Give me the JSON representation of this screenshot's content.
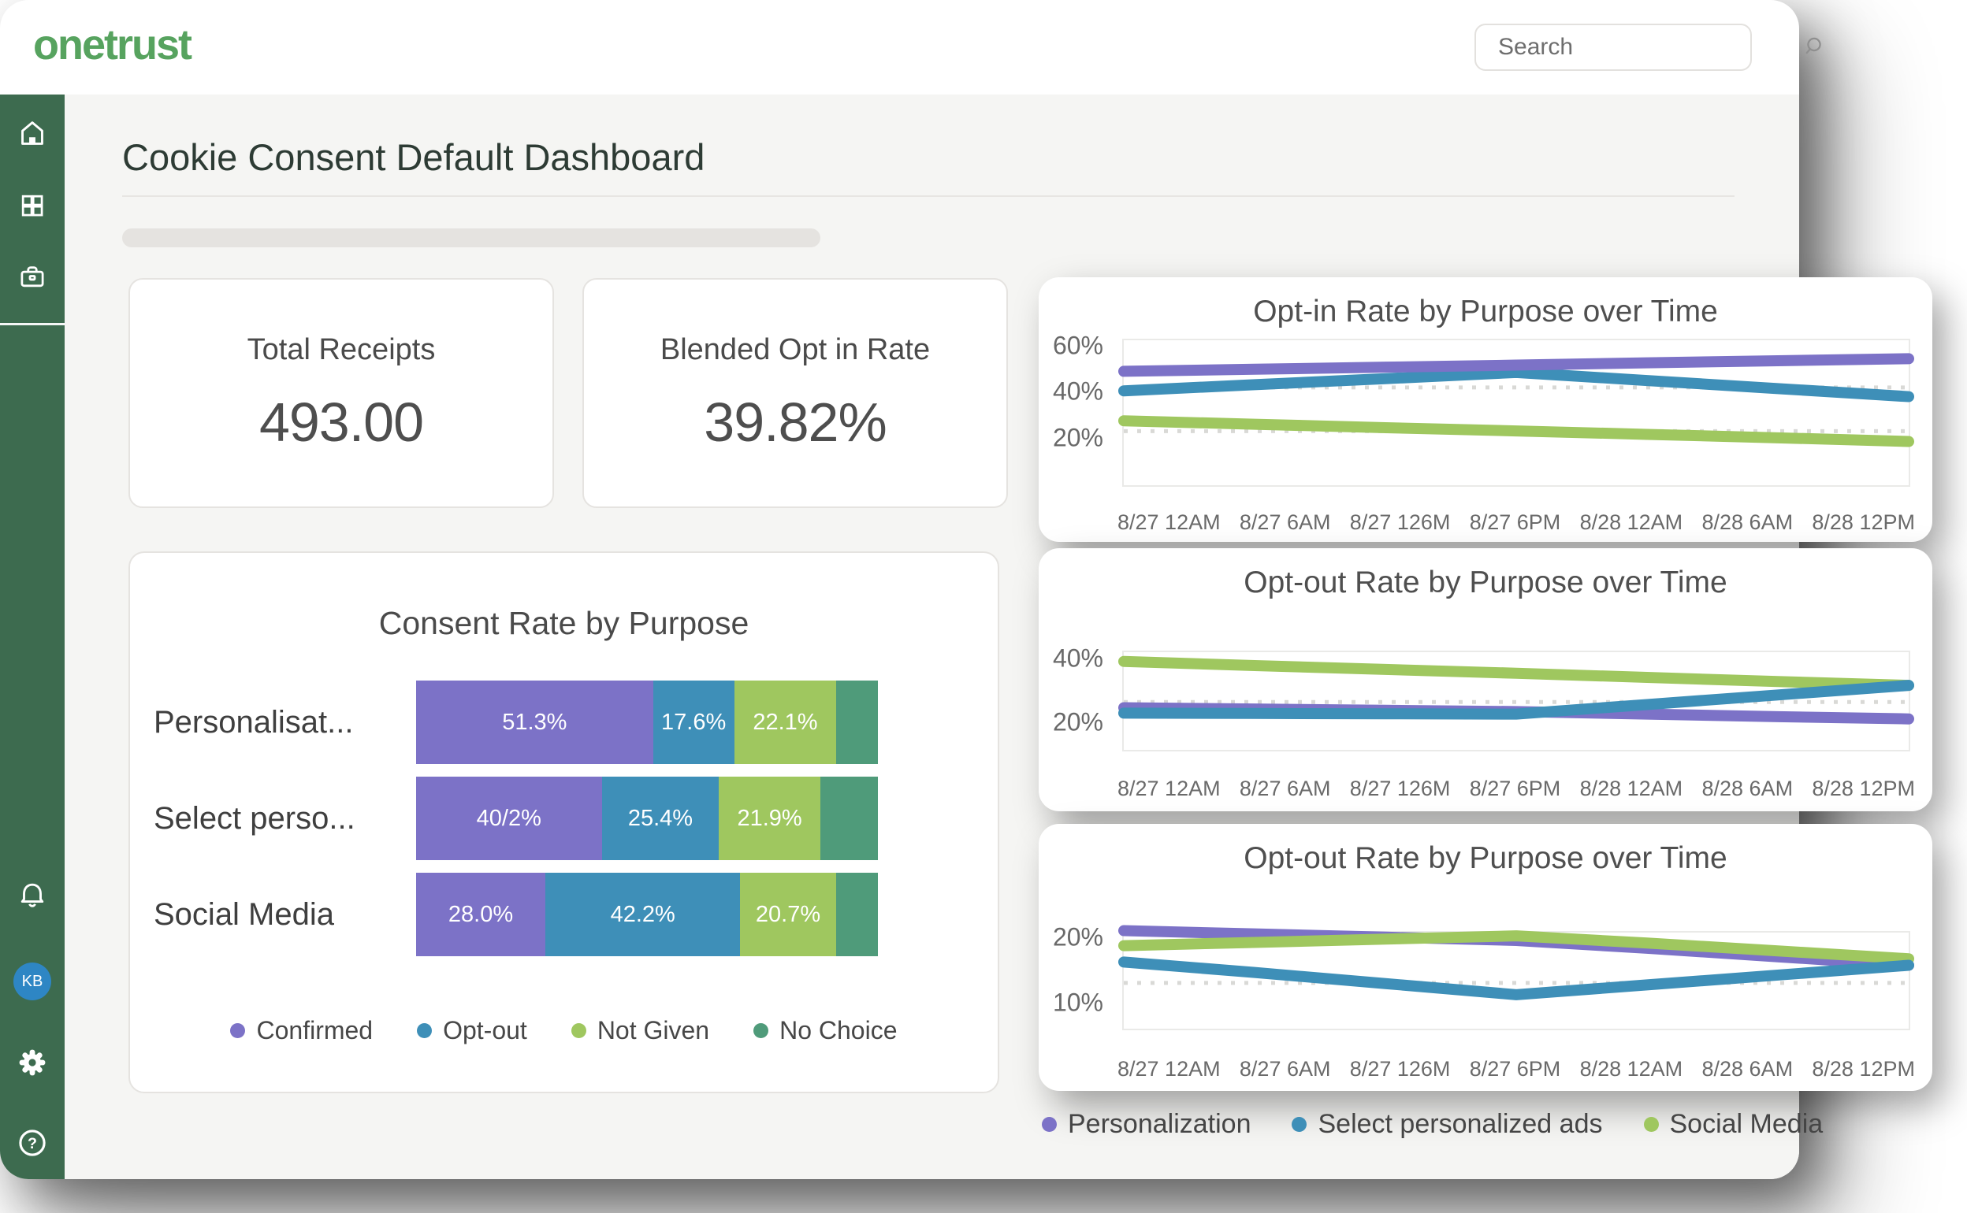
{
  "header": {
    "logo_text": "onetrust",
    "search_placeholder": "Search"
  },
  "sidebar": {
    "avatar_text": "KB"
  },
  "page": {
    "title": "Cookie Consent Default Dashboard"
  },
  "metrics": [
    {
      "label": "Total Receipts",
      "value": "493.00"
    },
    {
      "label": "Blended Opt in Rate",
      "value": "39.82%"
    }
  ],
  "colors": {
    "purple": "#7C72C7",
    "blue": "#3E8FB8",
    "green": "#9FC75F",
    "teal": "#4F9B7A",
    "sidebar_green": "#3D6B4F",
    "logo_green": "#57A35F",
    "avatar_blue": "#2E86C4",
    "ref_line": "#d9d9d6"
  },
  "chart_data": [
    {
      "id": "consent-rate-by-purpose",
      "type": "bar",
      "stacked": true,
      "orientation": "horizontal",
      "title": "Consent Rate by Purpose",
      "categories": [
        "Personalisat...",
        "Select perso...",
        "Social Media"
      ],
      "series": [
        {
          "name": "Confirmed",
          "color_key": "purple",
          "values": [
            51.3,
            40.2,
            28.0
          ],
          "labels": [
            "51.3%",
            "40/2%",
            "28.0%"
          ]
        },
        {
          "name": "Opt-out",
          "color_key": "blue",
          "values": [
            17.6,
            25.4,
            42.2
          ],
          "labels": [
            "17.6%",
            "25.4%",
            "42.2%"
          ]
        },
        {
          "name": "Not Given",
          "color_key": "green",
          "values": [
            22.1,
            21.9,
            20.7
          ],
          "labels": [
            "22.1%",
            "21.9%",
            "20.7%"
          ]
        },
        {
          "name": "No Choice",
          "color_key": "teal",
          "values": [
            9.0,
            12.5,
            9.1
          ],
          "labels": [
            "",
            "",
            ""
          ]
        }
      ],
      "legend": [
        {
          "label": "Confirmed",
          "color_key": "purple"
        },
        {
          "label": "Opt-out",
          "color_key": "blue"
        },
        {
          "label": "Not Given",
          "color_key": "green"
        },
        {
          "label": "No Choice",
          "color_key": "teal"
        }
      ]
    },
    {
      "id": "opt-in-rate-over-time",
      "type": "line",
      "title": "Opt-in Rate by Purpose over Time",
      "x_labels": [
        "8/27 12AM",
        "8/27 6AM",
        "8/27 126M",
        "8/27 6PM",
        "8/28 12AM",
        "8/28 6AM",
        "8/28 12PM"
      ],
      "ylim": [
        0,
        63
      ],
      "yticks": [
        {
          "value": 60,
          "label": "60%"
        },
        {
          "value": 40,
          "label": "40%"
        },
        {
          "value": 20,
          "label": "20%"
        }
      ],
      "ref_lines": [
        42.5,
        23.5
      ],
      "draw_order": [
        2,
        1,
        0
      ],
      "series": [
        {
          "name": "Personalization",
          "color_key": "purple",
          "values": [
            49.5,
            50.4,
            51.3,
            52.2,
            53.2,
            54.1,
            55.0
          ]
        },
        {
          "name": "Select personalized ads",
          "color_key": "blue",
          "values": [
            41.0,
            43.7,
            46.3,
            49.0,
            45.5,
            42.0,
            38.5
          ]
        },
        {
          "name": "Social Media",
          "color_key": "green",
          "values": [
            28.0,
            26.5,
            25.0,
            23.6,
            22.1,
            20.6,
            19.0
          ]
        }
      ]
    },
    {
      "id": "opt-out-rate-over-time-1",
      "type": "line",
      "title": "Opt-out Rate by Purpose over Time",
      "x_labels": [
        "8/27 12AM",
        "8/27 6AM",
        "8/27 126M",
        "8/27 6PM",
        "8/28 12AM",
        "8/28 6AM",
        "8/28 12PM"
      ],
      "ylim": [
        11.8,
        42.4
      ],
      "yticks": [
        {
          "value": 40,
          "label": "40%"
        },
        {
          "value": 20,
          "label": "20%"
        }
      ],
      "ref_lines": [
        26.8
      ],
      "draw_order": [
        0,
        2,
        1
      ],
      "series": [
        {
          "name": "Personalization",
          "color_key": "purple",
          "values": [
            25.0,
            24.6,
            24.2,
            23.8,
            23.0,
            22.2,
            21.5
          ]
        },
        {
          "name": "Select personalized ads",
          "color_key": "blue",
          "values": [
            23.3,
            23.2,
            23.1,
            23.0,
            26.0,
            29.0,
            32.0
          ]
        },
        {
          "name": "Social Media",
          "color_key": "green",
          "values": [
            39.5,
            38.2,
            37.0,
            35.8,
            34.5,
            33.2,
            32.0
          ]
        }
      ]
    },
    {
      "id": "opt-out-rate-over-time-2",
      "type": "line",
      "title": "Opt-out Rate by Purpose over Time",
      "x_labels": [
        "8/27 12AM",
        "8/27 6AM",
        "8/27 126M",
        "8/27 6PM",
        "8/28 12AM",
        "8/28 6AM",
        "8/28 12PM"
      ],
      "ylim": [
        6.3,
        21
      ],
      "yticks": [
        {
          "value": 20,
          "label": "20%"
        },
        {
          "value": 10,
          "label": "10%"
        }
      ],
      "ref_lines": [
        13.3
      ],
      "draw_order": [
        0,
        2,
        1
      ],
      "series": [
        {
          "name": "Personalization",
          "color_key": "purple",
          "values": [
            21.3,
            20.8,
            20.3,
            19.8,
            18.6,
            17.3,
            16.0
          ]
        },
        {
          "name": "Select personalized ads",
          "color_key": "blue",
          "values": [
            16.5,
            14.9,
            13.2,
            11.5,
            13.0,
            14.5,
            16.0
          ]
        },
        {
          "name": "Social Media",
          "color_key": "green",
          "values": [
            19.0,
            19.5,
            20.0,
            20.5,
            19.4,
            18.2,
            17.0
          ]
        }
      ]
    }
  ],
  "bottom_legend": [
    {
      "label": "Personalization",
      "color_key": "purple"
    },
    {
      "label": "Select personalized ads",
      "color_key": "blue"
    },
    {
      "label": "Social Media",
      "color_key": "green"
    }
  ]
}
